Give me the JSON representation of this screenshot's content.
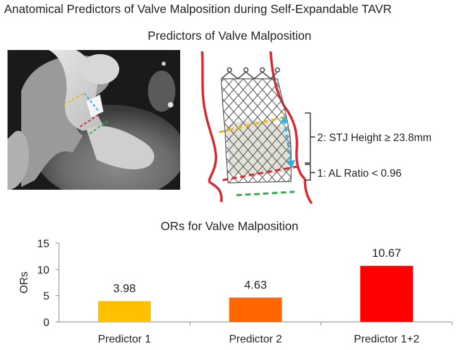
{
  "header": {
    "title": "Anatomical Predictors of Valve Malposition during Self-Expandable TAVR",
    "subtitle": "Predictors of Valve Malposition"
  },
  "diagram": {
    "label_stj_height": "2: STJ Height ≥ 23.8mm",
    "label_al_ratio": "1: AL Ratio < 0.96"
  },
  "colors": {
    "predictor1": "#FFC000",
    "predictor2": "#FF6600",
    "predictor12": "#FF0000",
    "aorta_wall": "#D9272E",
    "stj_line": "#F2B21A",
    "height_line": "#2FB2E4",
    "annulus_line": "#D9272E",
    "lvot_line": "#2EAF4E"
  },
  "chart_data": {
    "type": "bar",
    "title": "ORs for Valve Malposition",
    "categories": [
      "Predictor 1",
      "Predictor 2",
      "Predictor 1+2"
    ],
    "values": [
      3.98,
      4.63,
      10.67
    ],
    "data_labels": [
      "3.98",
      "4.63",
      "10.67"
    ],
    "ylabel": "ORs",
    "xlabel": "",
    "ylim": [
      0,
      15
    ],
    "yticks": [
      0,
      5,
      10,
      15
    ],
    "grid": false
  }
}
